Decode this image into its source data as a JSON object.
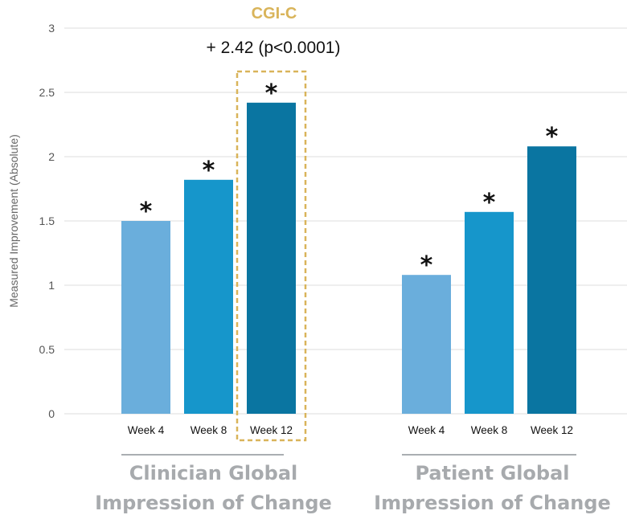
{
  "chart_data": {
    "type": "bar",
    "ylabel": "Measured Improvement (Absolute)",
    "ylim": [
      0,
      3
    ],
    "yticks": [
      "0",
      "0.5",
      "1",
      "1.5",
      "2",
      "2.5",
      "3"
    ],
    "grid": true,
    "groups": [
      {
        "name": "Clinician Global Impression of Change",
        "name_lines": [
          "Clinician Global",
          "Impression of Change"
        ],
        "categories": [
          "Week 4",
          "Week 8",
          "Week 12"
        ],
        "values": [
          1.5,
          1.82,
          2.42
        ],
        "markers": [
          "*",
          "*",
          "*"
        ]
      },
      {
        "name": "Patient Global Impression of Change",
        "name_lines": [
          "Patient Global",
          "Impression of Change"
        ],
        "categories": [
          "Week 4",
          "Week 8",
          "Week 12"
        ],
        "values": [
          1.08,
          1.57,
          2.08
        ],
        "markers": [
          "*",
          "*",
          "*"
        ]
      }
    ],
    "bar_colors": [
      "#6aaedc",
      "#1696cb",
      "#0a75a1"
    ],
    "highlight": {
      "group": 0,
      "category": 2,
      "title": "CGI-C",
      "text": "+ 2.42 (p<0.0001)",
      "color": "#d9b45a"
    }
  }
}
